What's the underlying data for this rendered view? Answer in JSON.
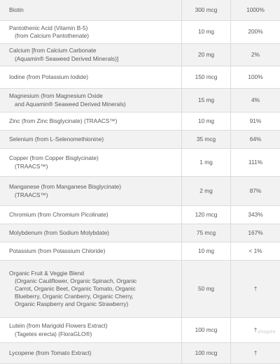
{
  "rows": [
    {
      "lines": [
        "Biotin"
      ],
      "amount": "300 mcg",
      "dv": "1000%"
    },
    {
      "lines": [
        "Pantothenic Acid (Vitamin B-5)",
        "(from Calcium Pantothenate)"
      ],
      "amount": "10 mg",
      "dv": "200%"
    },
    {
      "lines": [
        "Calcium [from Calcium Carbonate",
        "(Aquamin® Seaweed Derived Minerals)]"
      ],
      "amount": "20 mg",
      "dv": "2%"
    },
    {
      "lines": [
        "Iodine (from Potassium Iodide)"
      ],
      "amount": "150 mcg",
      "dv": "100%"
    },
    {
      "lines": [
        "Magnesium (from Magnesium Oxide",
        "and Aquamin® Seaweed Derived Minerals)"
      ],
      "amount": "15 mg",
      "dv": "4%"
    },
    {
      "lines": [
        "Zinc (from Zinc Bisglycinate) (TRAACS™)"
      ],
      "amount": "10 mg",
      "dv": "91%"
    },
    {
      "lines": [
        "Selenium (from L-Selenomethionine)"
      ],
      "amount": "35 mcg",
      "dv": "64%"
    },
    {
      "lines": [
        "Copper (from Copper Bisglycinate)",
        "(TRAACS™)"
      ],
      "amount": "1 mg",
      "dv": "111%"
    },
    {
      "lines": [
        "Manganese (from Manganese Bisglycinate)",
        "(TRAACS™)"
      ],
      "amount": "2 mg",
      "dv": "87%"
    },
    {
      "lines": [
        "Chromium (from Chromium Picolinate)"
      ],
      "amount": "120 mcg",
      "dv": "343%"
    },
    {
      "lines": [
        "Molybdenum (from Sodium Molybdate)"
      ],
      "amount": "75 mcg",
      "dv": "167%"
    },
    {
      "lines": [
        "Potassium (from Potassium Chloride)"
      ],
      "amount": "10 mg",
      "dv": "< 1%"
    },
    {
      "lines": [
        "Organic Fruit & Veggie Blend",
        "(Organic Cauliflower, Organic Spinach, Organic",
        "Carrot, Organic Beet, Organic Tomato, Organic",
        "Blueberry, Organic Cranberry, Organic Cherry,",
        "Organic Raspberry and Organic Strawberry)"
      ],
      "amount": "50 mg",
      "dv": "†"
    },
    {
      "lines": [
        "Lutein (from Marigold Flowers Extract)",
        "(Tagetes erecta) (FloraGLO®)"
      ],
      "amount": "100 mcg",
      "dv": "†"
    },
    {
      "lines": [
        "Lycopene (from Tomato Extract)"
      ],
      "amount": "100 mcg",
      "dv": "†"
    }
  ],
  "row_heights": [
    30,
    33,
    32,
    32,
    34,
    26,
    26,
    40,
    42,
    26,
    26,
    26,
    82,
    36,
    30
  ],
  "shaded": [
    true,
    false,
    true,
    false,
    true,
    false,
    true,
    false,
    true,
    false,
    true,
    false,
    true,
    false,
    true
  ],
  "watermark": "shopee"
}
